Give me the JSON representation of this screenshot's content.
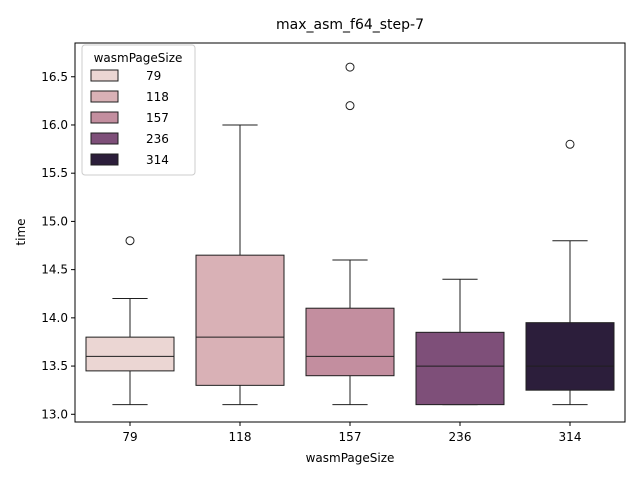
{
  "chart_data": {
    "type": "box",
    "title": "max_asm_f64_step-7",
    "xlabel": "wasmPageSize",
    "ylabel": "time",
    "ylim": [
      12.92,
      16.85
    ],
    "yticks": [
      13.0,
      13.5,
      14.0,
      14.5,
      15.0,
      15.5,
      16.0,
      16.5
    ],
    "ytick_labels": [
      "13.0",
      "13.5",
      "14.0",
      "14.5",
      "15.0",
      "15.5",
      "16.0",
      "16.5"
    ],
    "categories": [
      "79",
      "118",
      "157",
      "236",
      "314"
    ],
    "legend": {
      "title": "wasmPageSize",
      "position": "upper left",
      "entries": [
        "79",
        "118",
        "157",
        "236",
        "314"
      ]
    },
    "series": [
      {
        "name": "79",
        "color": "#ebd6d3",
        "whisker_low": 13.1,
        "q1": 13.45,
        "median": 13.6,
        "q3": 13.8,
        "whisker_high": 14.2,
        "outliers": [
          14.8
        ]
      },
      {
        "name": "118",
        "color": "#d9b1b6",
        "whisker_low": 13.1,
        "q1": 13.3,
        "median": 13.8,
        "q3": 14.65,
        "whisker_high": 16.0,
        "outliers": []
      },
      {
        "name": "157",
        "color": "#c38e9f",
        "whisker_low": 13.1,
        "q1": 13.4,
        "median": 13.6,
        "q3": 14.1,
        "whisker_high": 14.6,
        "outliers": [
          16.2,
          16.6
        ]
      },
      {
        "name": "236",
        "color": "#7e4f79",
        "whisker_low": 13.1,
        "q1": 13.1,
        "median": 13.5,
        "q3": 13.85,
        "whisker_high": 14.4,
        "outliers": []
      },
      {
        "name": "314",
        "color": "#2c1e3b",
        "whisker_low": 13.1,
        "q1": 13.25,
        "median": 13.5,
        "q3": 13.95,
        "whisker_high": 14.8,
        "outliers": [
          15.8
        ]
      }
    ]
  }
}
